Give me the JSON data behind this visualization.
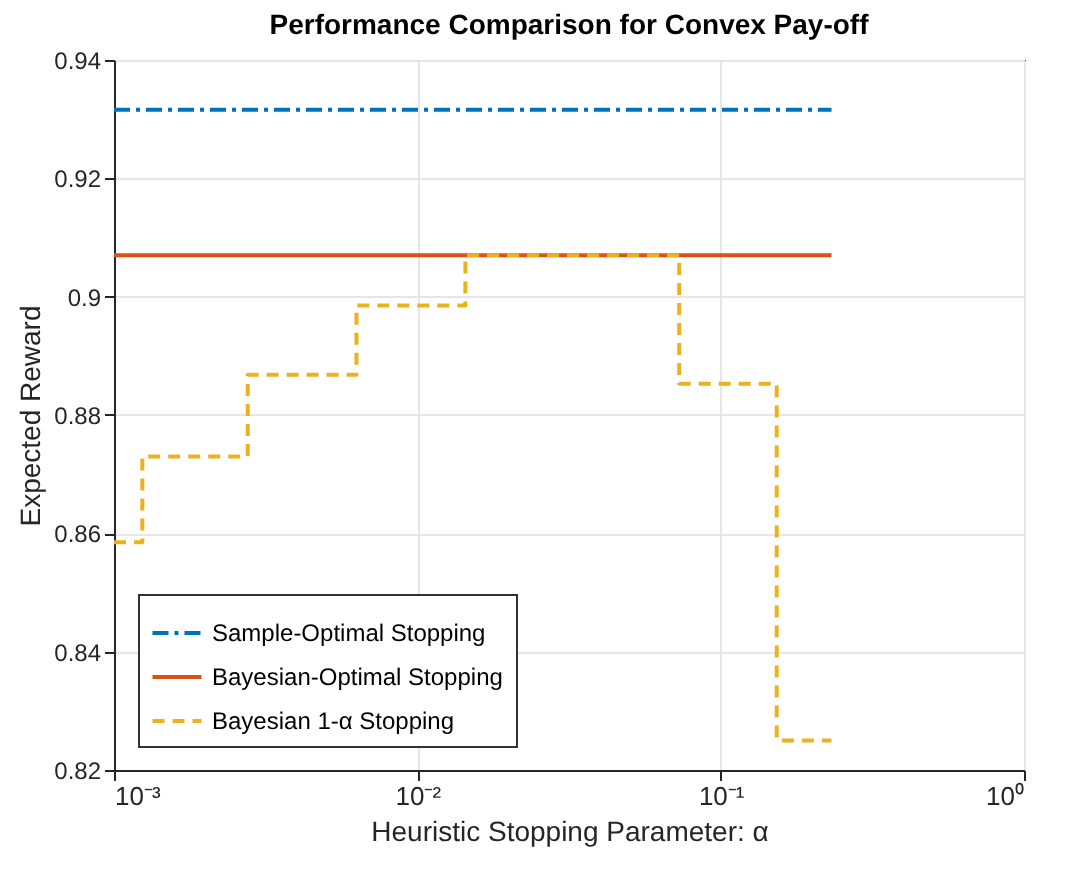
{
  "chart_data": {
    "type": "line",
    "title": "Performance Comparison for Convex Pay-off",
    "xlabel": "Heuristic Stopping Parameter: α",
    "ylabel": "Expected Reward",
    "log": "x",
    "xlim": [
      0.001,
      1
    ],
    "xticks": [
      {
        "value": 0.001,
        "label": "10⁻³"
      },
      {
        "value": 0.01,
        "label": "10⁻²"
      },
      {
        "value": 0.1,
        "label": "10⁻¹"
      },
      {
        "value": 1,
        "label": "10⁰"
      }
    ],
    "ylim": [
      0.82,
      0.94
    ],
    "yticks": [
      0.82,
      0.84,
      0.86,
      0.88,
      0.9,
      0.92,
      0.94
    ],
    "grid": true,
    "legend": "bottom left",
    "series": [
      {
        "name": "Sample-Optimal Stopping",
        "color": "#0072bd",
        "type": "line",
        "line_style": "dashdot",
        "x": [
          0.001,
          0.232
        ],
        "values": [
          0.9316,
          0.9316
        ]
      },
      {
        "name": "Bayesian-Optimal Stopping",
        "color": "#d95319",
        "type": "line",
        "line_style": "solid",
        "x": [
          0.001,
          0.232
        ],
        "values": [
          0.907,
          0.907
        ]
      },
      {
        "name": "Bayesian 1-α Stopping",
        "color": "#edb120",
        "type": "step",
        "line_style": "dashed",
        "x": [
          0.001,
          0.00124,
          0.00276,
          0.0063,
          0.0144,
          0.073,
          0.153,
          0.232
        ],
        "values": [
          0.8585,
          0.873,
          0.8868,
          0.8985,
          0.907,
          0.8853,
          0.825,
          0.825
        ]
      }
    ]
  }
}
